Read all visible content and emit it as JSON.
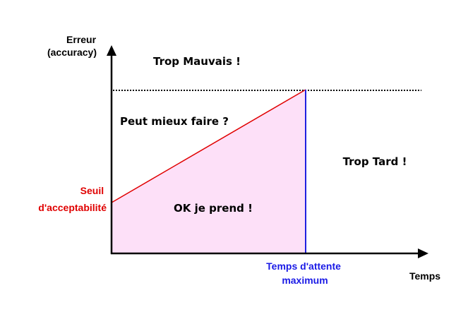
{
  "y_axis_label": [
    "Erreur",
    "(accuracy)"
  ],
  "x_axis_label": "Temps",
  "threshold_label": [
    "Seuil",
    "d'acceptabilité"
  ],
  "max_wait_label": [
    "Temps d'attente",
    "maximum"
  ],
  "regions": {
    "too_bad": "Trop Mauvais !",
    "could_do_better": "Peut mieux faire ?",
    "too_late": "Trop Tard !",
    "ok": "OK je prend !"
  },
  "colors": {
    "axis": "#000000",
    "threshold_line": "#e00000",
    "threshold_text": "#e00000",
    "max_wait_line": "#2020e0",
    "max_wait_text": "#1a1ae6",
    "ok_fill": "#fde0f8",
    "max_error_line": "#000000",
    "text": "#000000"
  }
}
